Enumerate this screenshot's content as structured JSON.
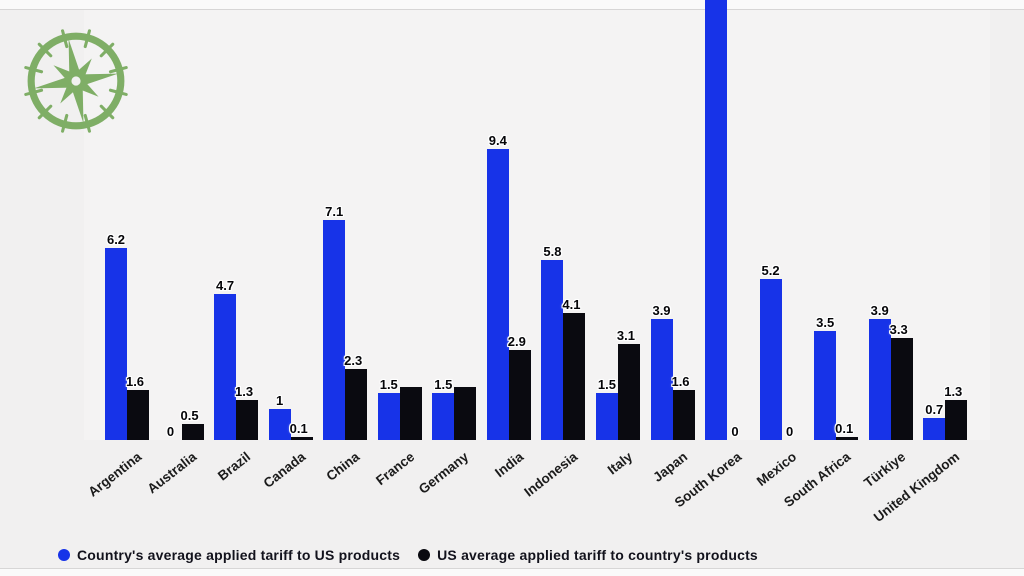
{
  "logo": {
    "label": "compass-logo",
    "color": "#7fae66"
  },
  "chart_data": {
    "type": "bar",
    "title": "",
    "xlabel": "",
    "ylabel": "",
    "categories": [
      "Argentina",
      "Australia",
      "Brazil",
      "Canada",
      "China",
      "France",
      "Germany",
      "India",
      "Indonesia",
      "Italy",
      "Japan",
      "South Korea",
      "Mexico",
      "South Africa",
      "Türkiye",
      "United Kingdom"
    ],
    "series": [
      {
        "name": "Country's average applied tariff to US products",
        "color": "#1733e8",
        "values": [
          6.2,
          0,
          4.7,
          1,
          7.1,
          1.5,
          1.5,
          9.4,
          5.8,
          1.5,
          3.9,
          null,
          5.2,
          3.5,
          3.9,
          0.7
        ],
        "labels": [
          "6.2",
          "0",
          "4.7",
          "1",
          "7.1",
          "1.5",
          "1.5",
          "9.4",
          "5.8",
          "1.5",
          "3.9",
          "",
          "5.2",
          "3.5",
          "3.9",
          "0.7"
        ],
        "clipped_beyond_top": [
          false,
          false,
          false,
          false,
          false,
          false,
          false,
          false,
          false,
          false,
          false,
          true,
          false,
          false,
          false,
          false
        ]
      },
      {
        "name": "US average applied tariff to country's products",
        "color": "#0a0a10",
        "values": [
          1.6,
          0.5,
          1.3,
          0.1,
          2.3,
          1.7,
          1.7,
          2.9,
          4.1,
          3.1,
          1.6,
          0,
          0,
          0.1,
          3.3,
          1.3
        ],
        "labels": [
          "1.6",
          "0.5",
          "1.3",
          "0.1",
          "2.3",
          "",
          "",
          "2.9",
          "4.1",
          "3.1",
          "1.6",
          "0",
          "0",
          "0.1",
          "3.3",
          "1.3"
        ]
      }
    ],
    "ylim": [
      0,
      14.2
    ],
    "grid": false,
    "legend_position": "bottom"
  }
}
